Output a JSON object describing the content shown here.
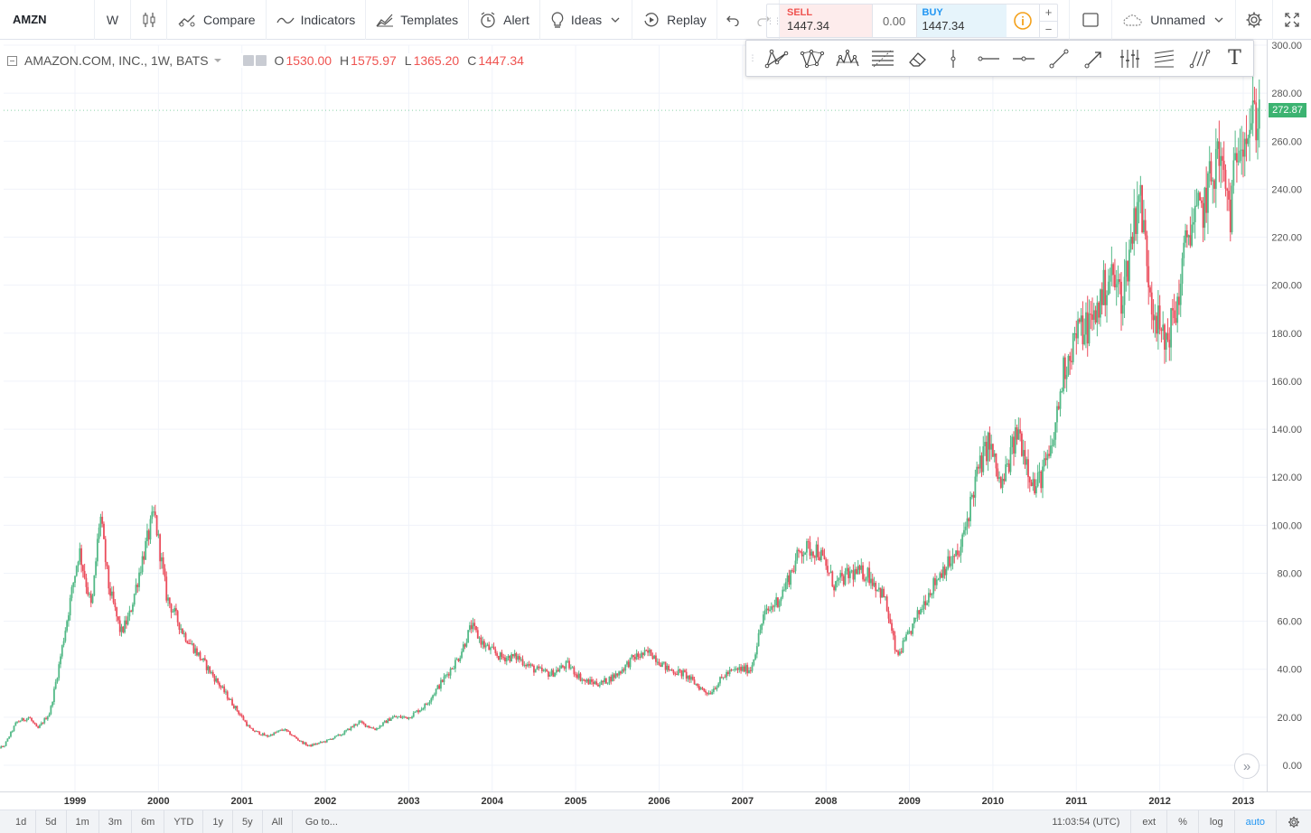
{
  "app": {
    "symbol": "AMZN",
    "interval": "W",
    "toolbar": {
      "compare": "Compare",
      "indicators": "Indicators",
      "templates": "Templates",
      "alert": "Alert",
      "ideas": "Ideas",
      "replay": "Replay"
    },
    "trade": {
      "sell_label": "SELL",
      "sell_price": "1447.34",
      "spread": "0.00",
      "buy_label": "BUY",
      "buy_price": "1447.34",
      "plus": "+",
      "minus": "−"
    },
    "layout_name": "Unnamed",
    "draw_text_tool": "T"
  },
  "legend": {
    "title": "AMAZON.COM, INC., 1W, BATS",
    "o_label": "O",
    "o_value": "1530.00",
    "h_label": "H",
    "h_value": "1575.97",
    "l_label": "L",
    "l_value": "1365.20",
    "c_label": "C",
    "c_value": "1447.34"
  },
  "last_price_label": "272.87",
  "scroll_icon": "»",
  "bottom": {
    "ranges": [
      "1d",
      "5d",
      "1m",
      "3m",
      "6m",
      "YTD",
      "1y",
      "5y",
      "All"
    ],
    "goto": "Go to...",
    "time": "11:03:54 (UTC)",
    "ext": "ext",
    "percent": "%",
    "log": "log",
    "auto": "auto"
  },
  "colors": {
    "up": "#53b987",
    "down": "#eb4d5c",
    "grid": "#f0f3fa",
    "last_price": "#3cb371"
  },
  "chart_data": {
    "type": "candlestick",
    "interval": "1W",
    "ylim": [
      0,
      300
    ],
    "yticks": [
      0,
      20,
      40,
      60,
      80,
      100,
      120,
      140,
      160,
      180,
      200,
      220,
      240,
      260,
      280,
      300
    ],
    "ytick_labels": [
      "0.00",
      "20.00",
      "40.00",
      "60.00",
      "80.00",
      "100.00",
      "120.00",
      "140.00",
      "160.00",
      "180.00",
      "200.00",
      "220.00",
      "240.00",
      "260.00",
      "280.00",
      "300.00"
    ],
    "xlim": [
      1998.0,
      2013.25
    ],
    "xticks": [
      1999,
      2000,
      2001,
      2002,
      2003,
      2004,
      2005,
      2006,
      2007,
      2008,
      2009,
      2010,
      2011,
      2012,
      2013
    ],
    "last_price": 272.87,
    "approx_close_path": [
      [
        1998.0,
        6
      ],
      [
        1998.15,
        8
      ],
      [
        1998.3,
        18
      ],
      [
        1998.45,
        20
      ],
      [
        1998.55,
        15
      ],
      [
        1998.7,
        22
      ],
      [
        1998.8,
        40
      ],
      [
        1998.95,
        70
      ],
      [
        1999.05,
        90
      ],
      [
        1999.2,
        65
      ],
      [
        1999.3,
        105
      ],
      [
        1999.4,
        75
      ],
      [
        1999.55,
        55
      ],
      [
        1999.65,
        62
      ],
      [
        1999.8,
        85
      ],
      [
        1999.95,
        105
      ],
      [
        2000.1,
        70
      ],
      [
        2000.3,
        55
      ],
      [
        2000.5,
        45
      ],
      [
        2000.7,
        35
      ],
      [
        2000.9,
        25
      ],
      [
        2001.1,
        15
      ],
      [
        2001.3,
        12
      ],
      [
        2001.5,
        15
      ],
      [
        2001.7,
        10
      ],
      [
        2001.8,
        8
      ],
      [
        2002.0,
        10
      ],
      [
        2002.2,
        13
      ],
      [
        2002.4,
        18
      ],
      [
        2002.6,
        15
      ],
      [
        2002.8,
        20
      ],
      [
        2003.0,
        20
      ],
      [
        2003.2,
        25
      ],
      [
        2003.4,
        35
      ],
      [
        2003.6,
        45
      ],
      [
        2003.75,
        58
      ],
      [
        2003.9,
        50
      ],
      [
        2004.1,
        45
      ],
      [
        2004.3,
        45
      ],
      [
        2004.5,
        40
      ],
      [
        2004.7,
        38
      ],
      [
        2004.9,
        42
      ],
      [
        2005.1,
        35
      ],
      [
        2005.3,
        34
      ],
      [
        2005.5,
        38
      ],
      [
        2005.7,
        45
      ],
      [
        2005.9,
        47
      ],
      [
        2006.1,
        40
      ],
      [
        2006.3,
        38
      ],
      [
        2006.5,
        32
      ],
      [
        2006.6,
        30
      ],
      [
        2006.8,
        38
      ],
      [
        2006.95,
        40
      ],
      [
        2007.1,
        40
      ],
      [
        2007.25,
        62
      ],
      [
        2007.45,
        70
      ],
      [
        2007.7,
        90
      ],
      [
        2007.9,
        90
      ],
      [
        2008.1,
        75
      ],
      [
        2008.3,
        80
      ],
      [
        2008.5,
        80
      ],
      [
        2008.7,
        70
      ],
      [
        2008.85,
        45
      ],
      [
        2009.0,
        55
      ],
      [
        2009.2,
        70
      ],
      [
        2009.4,
        82
      ],
      [
        2009.6,
        88
      ],
      [
        2009.8,
        120
      ],
      [
        2009.95,
        135
      ],
      [
        2010.1,
        115
      ],
      [
        2010.3,
        140
      ],
      [
        2010.5,
        115
      ],
      [
        2010.7,
        130
      ],
      [
        2010.85,
        165
      ],
      [
        2011.0,
        180
      ],
      [
        2011.2,
        185
      ],
      [
        2011.4,
        205
      ],
      [
        2011.55,
        195
      ],
      [
        2011.75,
        240
      ],
      [
        2011.9,
        195
      ],
      [
        2012.05,
        175
      ],
      [
        2012.2,
        190
      ],
      [
        2012.35,
        225
      ],
      [
        2012.5,
        230
      ],
      [
        2012.7,
        255
      ],
      [
        2012.85,
        230
      ],
      [
        2012.95,
        265
      ],
      [
        2013.05,
        265
      ],
      [
        2013.15,
        270
      ],
      [
        2013.2,
        272.87
      ]
    ]
  }
}
